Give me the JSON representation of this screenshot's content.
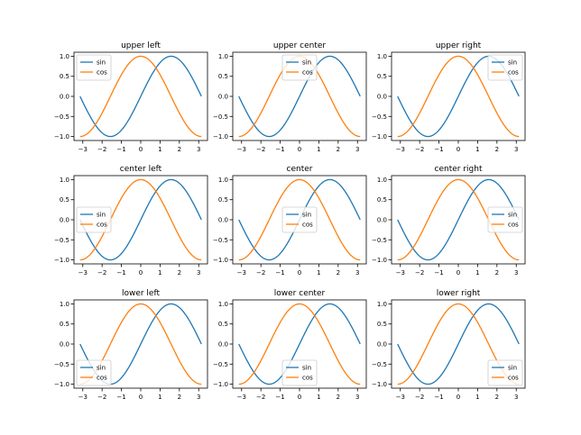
{
  "chart_data": {
    "type": "line",
    "x_domain": [
      -3.14159,
      3.14159
    ],
    "xlim": [
      -3.4558,
      3.4558
    ],
    "ylim": [
      -1.1,
      1.1
    ],
    "xticks": [
      -3,
      -2,
      -1,
      0,
      1,
      2,
      3
    ],
    "yticks": [
      -1.0,
      -0.5,
      0.0,
      0.5,
      1.0
    ],
    "xtick_labels": [
      "−3",
      "−2",
      "−1",
      "0",
      "1",
      "2",
      "3"
    ],
    "ytick_labels": [
      "−1.0",
      "−0.5",
      "0.0",
      "0.5",
      "1.0"
    ],
    "series": [
      {
        "name": "sin",
        "function": "sin",
        "color": "#1f77b4"
      },
      {
        "name": "cos",
        "function": "cos",
        "color": "#ff7f0e"
      }
    ],
    "subplots": [
      {
        "title": "upper left",
        "legend_loc": "upper left"
      },
      {
        "title": "upper center",
        "legend_loc": "upper center"
      },
      {
        "title": "upper right",
        "legend_loc": "upper right"
      },
      {
        "title": "center left",
        "legend_loc": "center left"
      },
      {
        "title": "center",
        "legend_loc": "center"
      },
      {
        "title": "center right",
        "legend_loc": "center right"
      },
      {
        "title": "lower left",
        "legend_loc": "lower left"
      },
      {
        "title": "lower center",
        "legend_loc": "lower center"
      },
      {
        "title": "lower right",
        "legend_loc": "lower right"
      }
    ]
  }
}
